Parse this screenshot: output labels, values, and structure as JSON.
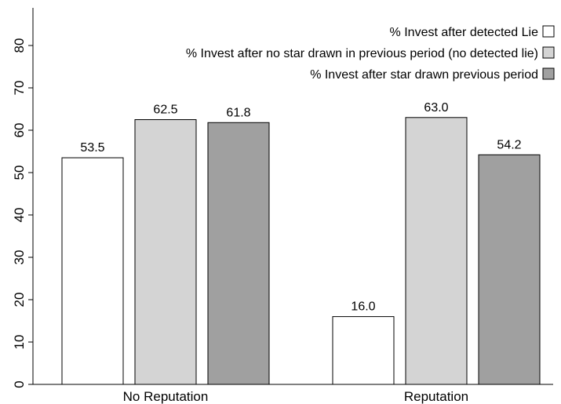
{
  "chart_data": {
    "type": "bar",
    "title": "",
    "xlabel": "",
    "ylabel": "",
    "categories": [
      "No Reputation",
      "Reputation"
    ],
    "ylim": [
      0,
      85
    ],
    "yticks": [
      0,
      10,
      20,
      30,
      40,
      50,
      60,
      70,
      80
    ],
    "grid": false,
    "legend_position": "top-right",
    "series": [
      {
        "name": "% Invest after detected Lie",
        "values": [
          53.5,
          16.0
        ],
        "labels": [
          "53.5",
          "16.0"
        ],
        "color": "#ffffff"
      },
      {
        "name": "% Invest after no star drawn in previous period (no detected lie)",
        "values": [
          62.5,
          63.0
        ],
        "labels": [
          "62.5",
          "63.0"
        ],
        "color": "#d4d4d4"
      },
      {
        "name": "% Invest after star drawn previous period",
        "values": [
          61.8,
          54.2
        ],
        "labels": [
          "61.8",
          "54.2"
        ],
        "color": "#a0a0a0"
      }
    ]
  }
}
